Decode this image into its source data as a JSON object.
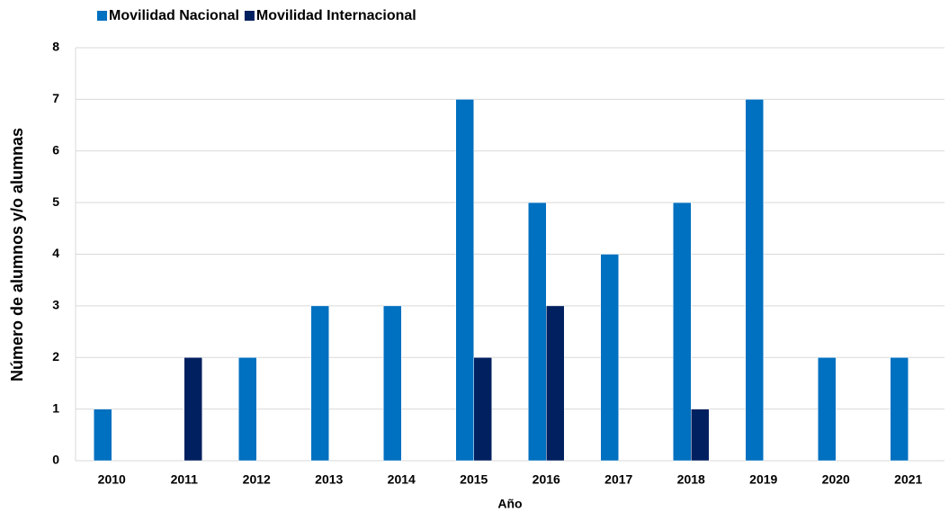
{
  "chart_data": {
    "type": "bar",
    "x_label": "Año",
    "y_label": "Número de alumnos y/o alumnas",
    "categories": [
      "2010",
      "2011",
      "2012",
      "2013",
      "2014",
      "2015",
      "2016",
      "2017",
      "2018",
      "2019",
      "2020",
      "2021"
    ],
    "series": [
      {
        "name": "Movilidad Nacional",
        "color": "#0070c0",
        "values": [
          1,
          0,
          2,
          3,
          3,
          7,
          5,
          4,
          5,
          7,
          2,
          2
        ]
      },
      {
        "name": "Movilidad Internacional",
        "color": "#002060",
        "values": [
          0,
          2,
          0,
          0,
          0,
          2,
          3,
          0,
          1,
          0,
          0,
          0
        ]
      }
    ],
    "ylim": [
      0,
      8
    ],
    "yticks": [
      0,
      1,
      2,
      3,
      4,
      5,
      6,
      7,
      8
    ],
    "grid": true,
    "legend": "top"
  }
}
